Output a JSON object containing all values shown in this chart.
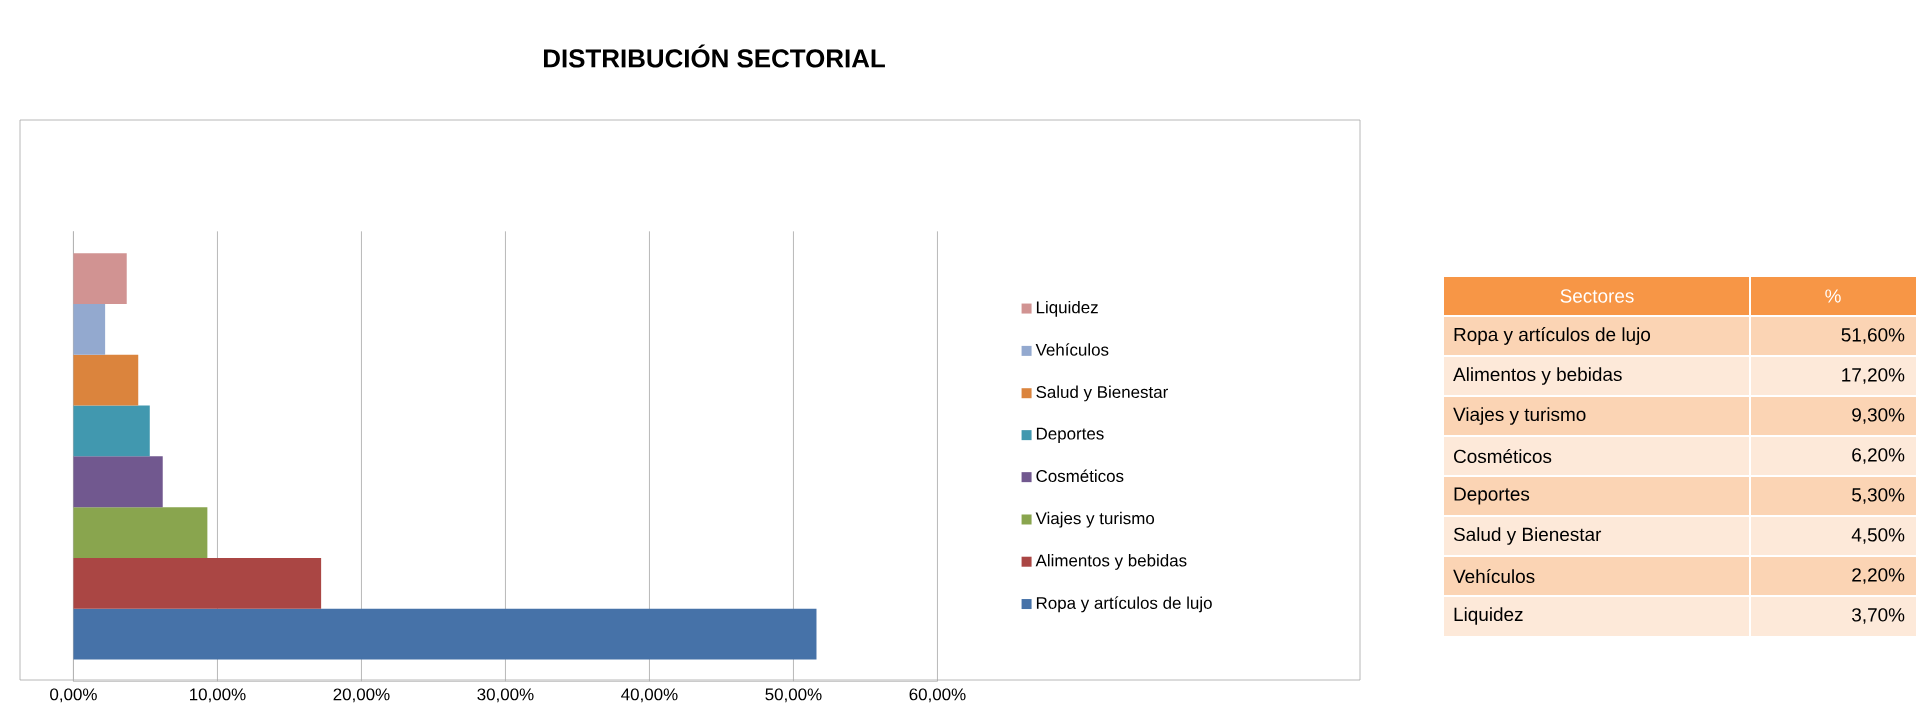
{
  "chart_data": [
    {
      "type": "bar",
      "title": "DISTRIBUCIÓN SECTORIAL",
      "orientation": "horizontal",
      "categories": [
        null
      ],
      "series": [
        {
          "name": "Ropa y artículos de lujo",
          "color": "#4672a8",
          "values": [
            51.6
          ]
        },
        {
          "name": "Alimentos y bebidas",
          "color": "#aa4644",
          "values": [
            17.2
          ]
        },
        {
          "name": "Viajes y turismo",
          "color": "#89a54e",
          "values": [
            9.3
          ]
        },
        {
          "name": "Cosméticos",
          "color": "#71588f",
          "values": [
            6.2
          ]
        },
        {
          "name": "Deportes",
          "color": "#4198af",
          "values": [
            5.3
          ]
        },
        {
          "name": "Salud y Bienestar",
          "color": "#db843d",
          "values": [
            4.5
          ]
        },
        {
          "name": "Vehículos",
          "color": "#93a9cf",
          "values": [
            2.2
          ]
        },
        {
          "name": "Liquidez",
          "color": "#d19392",
          "values": [
            3.7
          ]
        }
      ],
      "xlim": [
        0,
        60
      ],
      "xticks": [
        {
          "value": 0,
          "label": "0,00%"
        },
        {
          "value": 10,
          "label": "10,00%"
        },
        {
          "value": 20,
          "label": "20,00%"
        },
        {
          "value": 30,
          "label": "30,00%"
        },
        {
          "value": 40,
          "label": "40,00%"
        },
        {
          "value": 50,
          "label": "50,00%"
        },
        {
          "value": 60,
          "label": "60,00%"
        }
      ],
      "grid": "x",
      "legend": "right"
    },
    {
      "type": "other",
      "annotations": [
        "Sectores",
        "%",
        "Ropa y artículos de lujo",
        "51,60%",
        "Alimentos y bebidas",
        "17,20%",
        "Viajes y turismo",
        "9,30%",
        "Cosméticos",
        "6,20%",
        "Deportes",
        "5,30%",
        "Salud y Bienestar",
        "4,50%",
        "Vehículos",
        "2,20%",
        "Liquidez",
        "3,70%"
      ]
    }
  ]
}
